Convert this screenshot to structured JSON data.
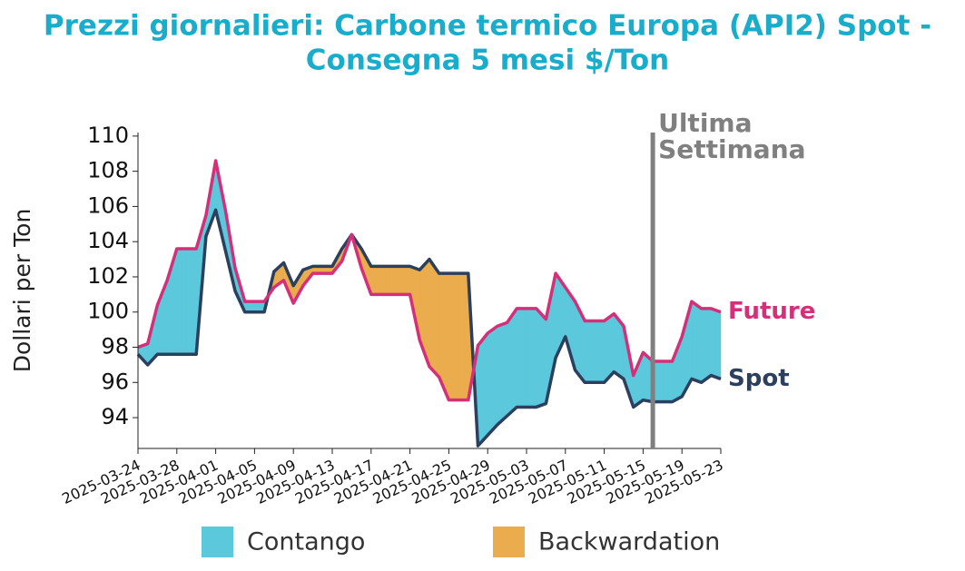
{
  "chart_data": {
    "type": "line",
    "title": [
      "Prezzi giornalieri: Carbone termico Europa (API2) Spot -",
      "Consegna 5 mesi $/Ton"
    ],
    "y_label": "Dollari per Ton",
    "x": [
      "2025-03-24",
      "2025-03-25",
      "2025-03-26",
      "2025-03-27",
      "2025-03-28",
      "2025-03-29",
      "2025-03-30",
      "2025-03-31",
      "2025-04-01",
      "2025-04-02",
      "2025-04-03",
      "2025-04-04",
      "2025-04-05",
      "2025-04-06",
      "2025-04-07",
      "2025-04-08",
      "2025-04-09",
      "2025-04-10",
      "2025-04-11",
      "2025-04-12",
      "2025-04-13",
      "2025-04-14",
      "2025-04-15",
      "2025-04-16",
      "2025-04-17",
      "2025-04-18",
      "2025-04-19",
      "2025-04-20",
      "2025-04-21",
      "2025-04-22",
      "2025-04-23",
      "2025-04-24",
      "2025-04-25",
      "2025-04-26",
      "2025-04-27",
      "2025-04-28",
      "2025-04-29",
      "2025-04-30",
      "2025-05-01",
      "2025-05-02",
      "2025-05-03",
      "2025-05-04",
      "2025-05-05",
      "2025-05-06",
      "2025-05-07",
      "2025-05-08",
      "2025-05-09",
      "2025-05-10",
      "2025-05-11",
      "2025-05-12",
      "2025-05-13",
      "2025-05-14",
      "2025-05-15",
      "2025-05-16",
      "2025-05-17",
      "2025-05-18",
      "2025-05-19",
      "2025-05-20",
      "2025-05-21",
      "2025-05-22",
      "2025-05-23"
    ],
    "series": [
      {
        "name": "Spot",
        "color": "#2b3f5e",
        "values": [
          97.6,
          97.0,
          97.6,
          97.6,
          97.6,
          97.6,
          97.6,
          104.3,
          105.8,
          103.5,
          101.2,
          100.0,
          100.0,
          100.0,
          102.3,
          102.8,
          101.5,
          102.4,
          102.6,
          102.6,
          102.6,
          103.6,
          104.4,
          103.6,
          102.6,
          102.6,
          102.6,
          102.6,
          102.6,
          102.4,
          103.0,
          102.2,
          102.2,
          102.2,
          102.2,
          92.4,
          93.0,
          93.6,
          94.1,
          94.6,
          94.6,
          94.6,
          94.8,
          97.4,
          98.6,
          96.7,
          96.0,
          96.0,
          96.0,
          96.6,
          96.2,
          94.6,
          95.0,
          94.9,
          94.9,
          94.9,
          95.2,
          96.2,
          96.0,
          96.4,
          96.2
        ]
      },
      {
        "name": "Future",
        "color": "#d62f7a",
        "values": [
          98.0,
          98.2,
          100.4,
          101.8,
          103.6,
          103.6,
          103.6,
          105.5,
          108.6,
          105.8,
          102.5,
          100.6,
          100.6,
          100.6,
          101.4,
          101.8,
          100.5,
          101.5,
          102.2,
          102.2,
          102.2,
          102.9,
          104.4,
          102.5,
          101.0,
          101.0,
          101.0,
          101.0,
          101.0,
          98.4,
          96.9,
          96.3,
          95.0,
          95.0,
          95.0,
          98.1,
          98.8,
          99.2,
          99.4,
          100.2,
          100.2,
          100.2,
          99.6,
          102.2,
          101.4,
          100.6,
          99.5,
          99.5,
          99.5,
          99.9,
          99.2,
          96.4,
          97.7,
          97.2,
          97.2,
          97.2,
          98.6,
          100.6,
          100.2,
          100.2,
          100.0
        ]
      }
    ],
    "fill_legend": [
      {
        "name": "Contango",
        "color": "#5bc8dc"
      },
      {
        "name": "Backwardation",
        "color": "#eaac4c"
      }
    ],
    "xlim": [
      "2025-03-24",
      "2025-05-23"
    ],
    "xticks": [
      "2025-03-24",
      "2025-03-28",
      "2025-04-01",
      "2025-04-05",
      "2025-04-09",
      "2025-04-13",
      "2025-04-17",
      "2025-04-21",
      "2025-04-25",
      "2025-04-29",
      "2025-05-03",
      "2025-05-07",
      "2025-05-11",
      "2025-05-15",
      "2025-05-19",
      "2025-05-23"
    ],
    "ylim": [
      92.25,
      110.2
    ],
    "yticks": [
      94,
      96,
      98,
      100,
      102,
      104,
      106,
      108,
      110
    ],
    "annotation": {
      "x": "2025-05-16",
      "label": [
        "Ultima",
        "Settimana"
      ],
      "color": "#808080"
    }
  }
}
